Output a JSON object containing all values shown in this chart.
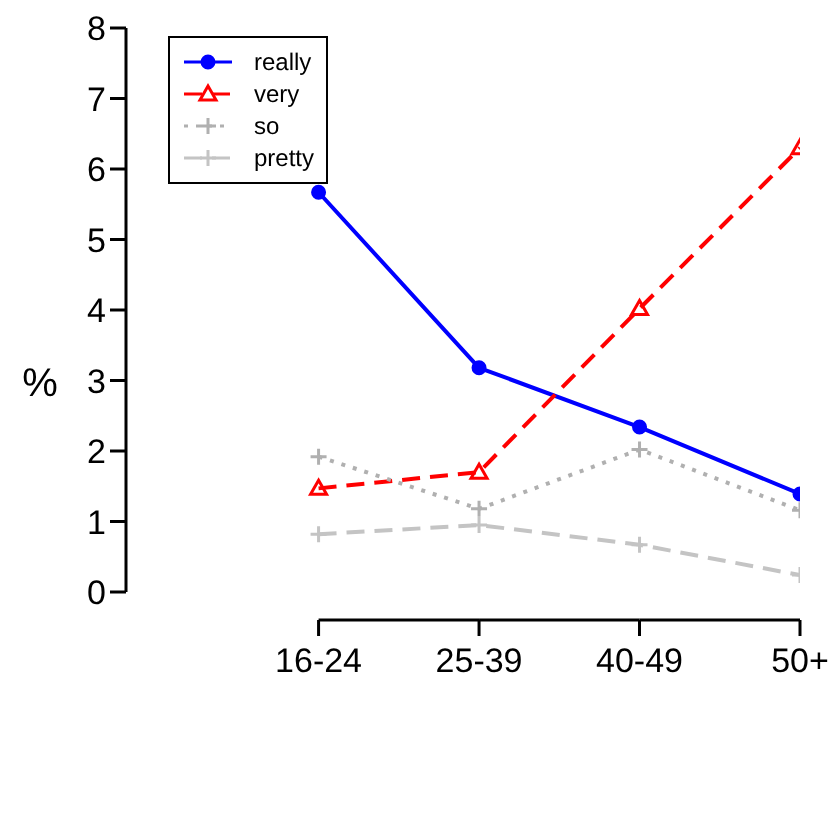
{
  "chart_data": {
    "type": "line",
    "ylabel": "%",
    "categories": [
      "16-24",
      "25-39",
      "40-49",
      "50+"
    ],
    "series": [
      {
        "name": "really",
        "color": "#0000ff",
        "values": [
          5.67,
          3.18,
          2.34,
          1.39
        ],
        "marker": "circle",
        "line_style": "solid"
      },
      {
        "name": "very",
        "color": "#ff0000",
        "values": [
          1.47,
          1.7,
          4.02,
          6.3
        ],
        "marker": "triangle",
        "line_style": "dashed"
      },
      {
        "name": "so",
        "color": "#b0b0b0",
        "values": [
          1.92,
          1.18,
          2.02,
          1.16
        ],
        "marker": "cross",
        "line_style": "dotted"
      },
      {
        "name": "pretty",
        "color": "#c4c4c4",
        "values": [
          0.82,
          0.95,
          0.67,
          0.24
        ],
        "marker": "cross",
        "line_style": "dashed"
      }
    ],
    "ylim": [
      0,
      8
    ],
    "yticks": [
      0,
      1,
      2,
      3,
      4,
      5,
      6,
      7,
      8
    ],
    "grid": false,
    "legend": "top left"
  }
}
